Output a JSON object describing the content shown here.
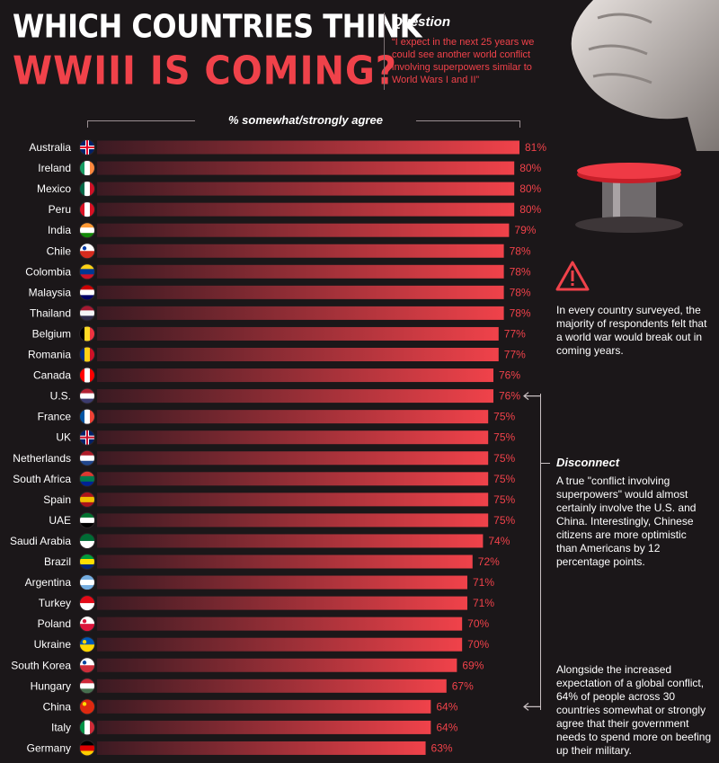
{
  "header": {
    "title_line1": "WHICH COUNTRIES THINK",
    "title_line2": "WWIII IS COMING?",
    "question_label": "Question",
    "question_text": "“I expect in the next 25 years we could see another world conflict involving superpowers similar to World Wars I and II”"
  },
  "colors": {
    "accent": "#f0424a",
    "background": "#1b1719",
    "bar_start": "#3a1a22",
    "bar_end": "#f0424a"
  },
  "icons": [
    "fist-icon",
    "red-button-icon",
    "warning-icon",
    "flag-icon"
  ],
  "callouts": {
    "warning_text": "In every country surveyed, the majority of respondents felt that a world war would break out in coming years.",
    "disconnect_title": "Disconnect",
    "disconnect_text": "A true \"conflict involving superpowers\" would almost certainly involve the U.S. and China. Interestingly, Chinese citizens are more optimistic than Americans by 12 percentage points.",
    "military_text": "Alongside the increased expectation of a global conflict, 64% of people across 30 countries somewhat or strongly agree that their government needs to spend more on beefing up their military."
  },
  "chart_data": {
    "type": "bar",
    "orientation": "horizontal",
    "axis_title": "% somewhat/strongly agree",
    "unit": "%",
    "categories": [
      "Australia",
      "Ireland",
      "Mexico",
      "Peru",
      "India",
      "Chile",
      "Colombia",
      "Malaysia",
      "Thailand",
      "Belgium",
      "Romania",
      "Canada",
      "U.S.",
      "France",
      "UK",
      "Netherlands",
      "South Africa",
      "Spain",
      "UAE",
      "Saudi Arabia",
      "Brazil",
      "Argentina",
      "Turkey",
      "Poland",
      "Ukraine",
      "South Korea",
      "Hungary",
      "China",
      "Italy",
      "Germany"
    ],
    "values": [
      81,
      80,
      80,
      80,
      79,
      78,
      78,
      78,
      78,
      77,
      77,
      76,
      76,
      75,
      75,
      75,
      75,
      75,
      75,
      74,
      72,
      71,
      71,
      70,
      70,
      69,
      67,
      64,
      64,
      63
    ],
    "value_labels": [
      "81%",
      "80%",
      "80%",
      "80%",
      "79%",
      "78%",
      "78%",
      "78%",
      "78%",
      "77%",
      "77%",
      "76%",
      "76%",
      "75%",
      "75%",
      "75%",
      "75%",
      "75%",
      "75%",
      "74%",
      "72%",
      "71%",
      "71%",
      "70%",
      "70%",
      "69%",
      "67%",
      "64%",
      "64%",
      "63%"
    ],
    "flag_colors": [
      [
        "#012169",
        "#ffffff",
        "#e4002b"
      ],
      [
        "#169b62",
        "#ffffff",
        "#ff883e"
      ],
      [
        "#006847",
        "#ffffff",
        "#ce1126"
      ],
      [
        "#d91023",
        "#ffffff",
        "#d91023"
      ],
      [
        "#ff9933",
        "#ffffff",
        "#138808"
      ],
      [
        "#ffffff",
        "#d52b1e",
        "#0039a6"
      ],
      [
        "#fcd116",
        "#003893",
        "#ce1126"
      ],
      [
        "#cc0001",
        "#ffffff",
        "#010066"
      ],
      [
        "#a51931",
        "#f4f5f8",
        "#2d2a4a"
      ],
      [
        "#000000",
        "#fdda24",
        "#ef3340"
      ],
      [
        "#002b7f",
        "#fcd116",
        "#ce1126"
      ],
      [
        "#ff0000",
        "#ffffff",
        "#ff0000"
      ],
      [
        "#b22234",
        "#ffffff",
        "#3c3b6e"
      ],
      [
        "#0055a4",
        "#ffffff",
        "#ef4135"
      ],
      [
        "#012169",
        "#ffffff",
        "#c8102e"
      ],
      [
        "#ae1c28",
        "#ffffff",
        "#21468b"
      ],
      [
        "#de3831",
        "#007a4d",
        "#002395"
      ],
      [
        "#aa151b",
        "#f1bf00",
        "#aa151b"
      ],
      [
        "#00732f",
        "#ffffff",
        "#000000"
      ],
      [
        "#006c35",
        "#ffffff",
        "#006c35"
      ],
      [
        "#009c3b",
        "#ffdf00",
        "#002776"
      ],
      [
        "#74acdf",
        "#ffffff",
        "#74acdf"
      ],
      [
        "#e30a17",
        "#ffffff",
        "#e30a17"
      ],
      [
        "#ffffff",
        "#dc143c",
        "#dc143c"
      ],
      [
        "#0057b7",
        "#ffd700",
        "#ffd700"
      ],
      [
        "#ffffff",
        "#cd2e3a",
        "#0047a0"
      ],
      [
        "#ce2939",
        "#ffffff",
        "#477050"
      ],
      [
        "#de2910",
        "#de2910",
        "#ffde00"
      ],
      [
        "#009246",
        "#ffffff",
        "#ce2b37"
      ],
      [
        "#000000",
        "#dd0000",
        "#ffce00"
      ]
    ],
    "flag_layout": [
      "cross",
      "v3",
      "v3",
      "v3",
      "h3",
      "h2",
      "h3",
      "h3",
      "h3",
      "v3",
      "v3",
      "v3",
      "h3",
      "v3",
      "cross",
      "h3",
      "h3",
      "h3",
      "h3",
      "h2",
      "h3",
      "h3",
      "h2",
      "h2",
      "h2",
      "h2",
      "h3",
      "h2",
      "v3",
      "h3"
    ]
  }
}
